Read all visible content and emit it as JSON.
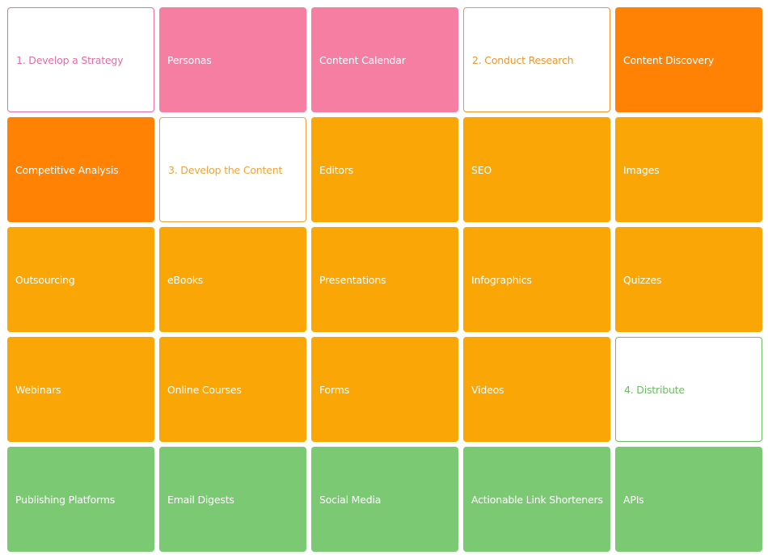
{
  "tiles": [
    "1. Develop a Strategy",
    "Personas",
    "Content Calendar",
    "2. Conduct Research",
    "Content Discovery",
    "Competitive Analysis",
    "3. Develop the Content",
    "Editors",
    "SEO",
    "Images",
    "Outsourcing",
    "eBooks",
    "Presentations",
    "Infographics",
    "Quizzes",
    "Webinars",
    "Online Courses",
    "Forms",
    "Videos",
    "4. Distribute",
    "Publishing Platforms",
    "Email Digests",
    "Social Media",
    "Actionable Link Shorteners",
    "APIs"
  ]
}
